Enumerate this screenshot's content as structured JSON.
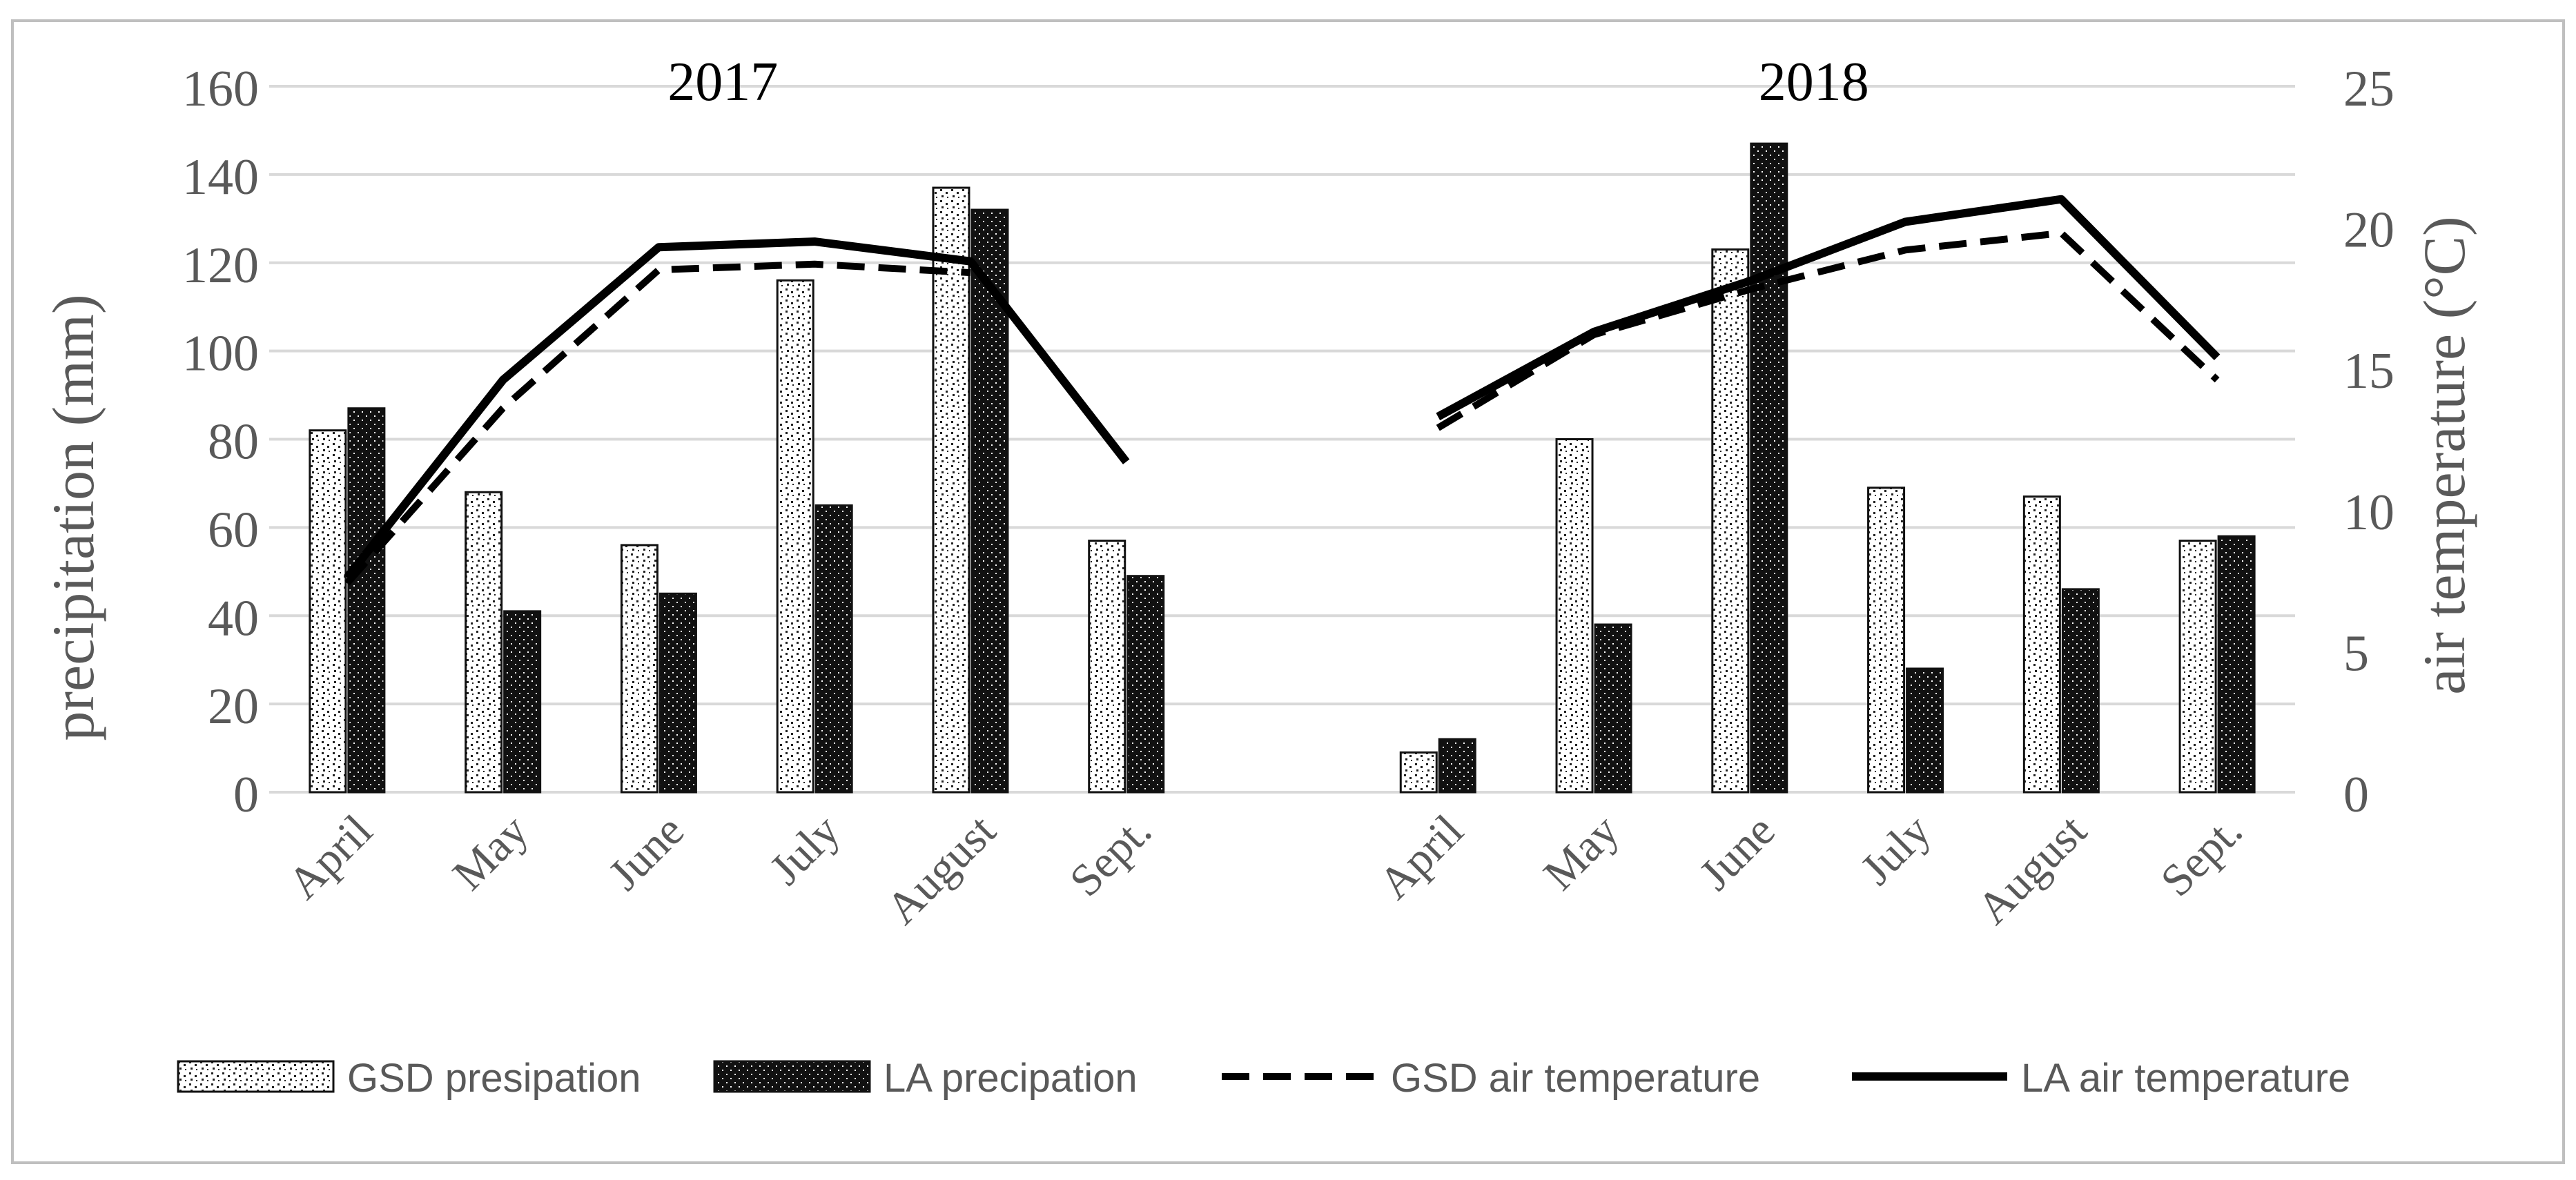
{
  "chart_data": {
    "type": "bar",
    "categories": [
      "April",
      "May",
      "June",
      "July",
      "August",
      "Sept.",
      "April",
      "May",
      "June",
      "July",
      "August",
      "Sept."
    ],
    "groups": [
      {
        "label": "2017",
        "from": 0,
        "to": 5
      },
      {
        "label": "2018",
        "from": 6,
        "to": 11
      }
    ],
    "series": [
      {
        "name": "GSD presipation",
        "kind": "bar",
        "axis": "left",
        "pattern": "light",
        "values": [
          82,
          68,
          56,
          116,
          137,
          57,
          9,
          80,
          123,
          69,
          67,
          57
        ]
      },
      {
        "name": "LA precipation",
        "kind": "bar",
        "axis": "left",
        "pattern": "dark",
        "values": [
          87,
          41,
          45,
          65,
          132,
          49,
          12,
          38,
          147,
          28,
          46,
          58
        ]
      },
      {
        "name": "GSD air temperature",
        "kind": "line",
        "axis": "right",
        "style": "dashed",
        "values": [
          7.4,
          13.6,
          18.5,
          18.7,
          18.4,
          null,
          12.9,
          16.2,
          17.8,
          19.2,
          19.8,
          14.6
        ]
      },
      {
        "name": "LA air temperature",
        "kind": "line",
        "axis": "right",
        "style": "solid",
        "values": [
          7.6,
          14.6,
          19.3,
          19.5,
          18.8,
          11.7,
          13.3,
          16.3,
          18.1,
          20.2,
          21,
          15.4
        ]
      }
    ],
    "ylabel": "precipitation (mm)",
    "y2label": "air temperature (°C)",
    "ylim": [
      0,
      160
    ],
    "yticks": [
      "0",
      "20",
      "40",
      "60",
      "80",
      "100",
      "120",
      "140",
      "160"
    ],
    "y2lim": [
      0,
      25
    ],
    "y2ticks": [
      "0",
      "5",
      "10",
      "15",
      "20",
      "25"
    ],
    "grid": true,
    "legend_position": "bottom"
  }
}
